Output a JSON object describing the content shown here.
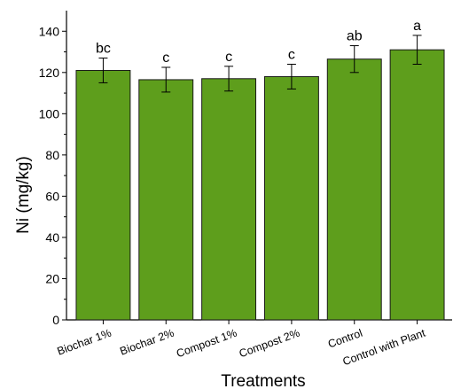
{
  "chart_data": {
    "type": "bar",
    "categories": [
      "Biochar 1%",
      "Biochar 2%",
      "Compost 1%",
      "Compost 2%",
      "Control",
      "Control with Plant"
    ],
    "values": [
      121,
      116.5,
      117,
      118,
      126.5,
      131
    ],
    "errors": [
      6,
      6,
      6,
      6,
      6.5,
      7
    ],
    "significance_letters": [
      "bc",
      "c",
      "c",
      "c",
      "ab",
      "a"
    ],
    "xlabel": "Treatments",
    "ylabel": "Ni (mg/kg)",
    "ylim": [
      0,
      150
    ],
    "yticks": [
      0,
      20,
      40,
      60,
      80,
      100,
      120,
      140
    ],
    "bar_color": "#5e9e1c",
    "bar_edge_color": "#1a1a1a",
    "grid": false,
    "legend": "none"
  }
}
